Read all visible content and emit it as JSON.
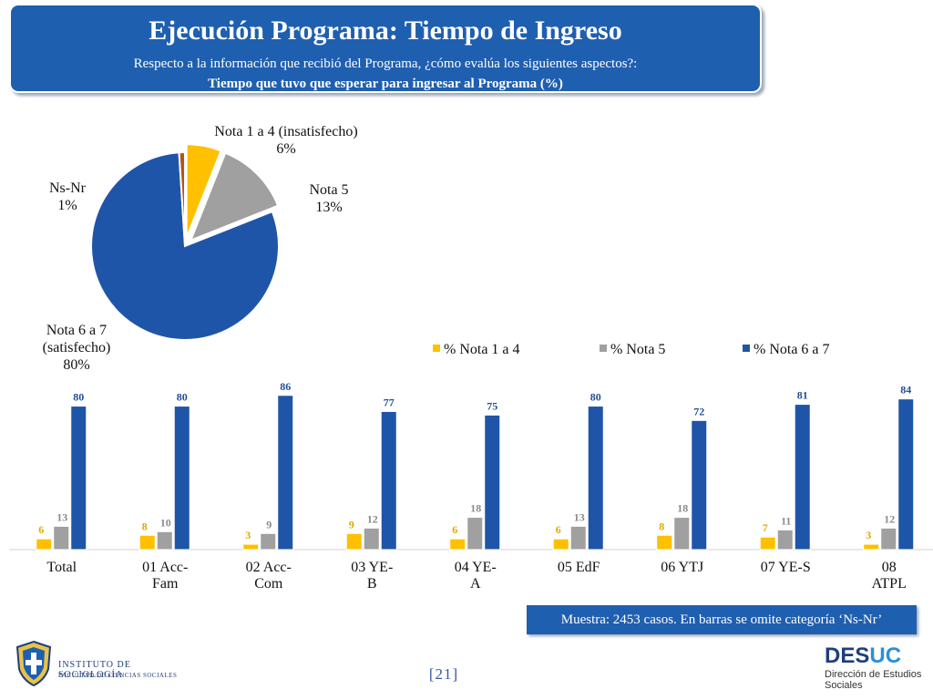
{
  "header": {
    "title": "Ejecución Programa: Tiempo de Ingreso",
    "subtitle": "Respecto a la información que recibió del Programa, ¿cómo evalúa los siguientes aspectos?:",
    "subtitle2": "Tiempo que tuvo que esperar para ingresar al Programa (%)"
  },
  "colors": {
    "accent": "#1f5fb0",
    "nota_1_4": "#ffc000",
    "nota_5": "#a0a0a0",
    "nota_6_7": "#1f55a8",
    "ns_nr": "#b5531c"
  },
  "chart_data": [
    {
      "type": "pie",
      "slices": [
        {
          "label_line1": "Nota 1 a 4 (insatisfecho)",
          "label_line2": "",
          "value": 6,
          "value_text": "6%"
        },
        {
          "label_line1": "Nota 5",
          "label_line2": "",
          "value": 13,
          "value_text": "13%"
        },
        {
          "label_line1": "Nota 6 a 7",
          "label_line2": "(satisfecho)",
          "value": 80,
          "value_text": "80%"
        },
        {
          "label_line1": "Ns-Nr",
          "label_line2": "",
          "value": 1,
          "value_text": "1%"
        }
      ]
    },
    {
      "type": "bar",
      "categories": [
        {
          "line1": "Total",
          "line2": ""
        },
        {
          "line1": "01 Acc-",
          "line2": "Fam"
        },
        {
          "line1": "02 Acc-",
          "line2": "Com"
        },
        {
          "line1": "03 YE-",
          "line2": "B"
        },
        {
          "line1": "04 YE-",
          "line2": "A"
        },
        {
          "line1": "05 EdF",
          "line2": ""
        },
        {
          "line1": "06 YTJ",
          "line2": ""
        },
        {
          "line1": "07 YE-S",
          "line2": ""
        },
        {
          "line1": "08",
          "line2": "ATPL"
        }
      ],
      "series": [
        {
          "name": "% Nota 1 a 4",
          "values": [
            6,
            8,
            3,
            9,
            6,
            6,
            8,
            7,
            3
          ]
        },
        {
          "name": "% Nota 5",
          "values": [
            13,
            10,
            9,
            12,
            18,
            13,
            18,
            11,
            12
          ]
        },
        {
          "name": "% Nota 6 a 7",
          "values": [
            80,
            80,
            86,
            77,
            75,
            80,
            72,
            81,
            84
          ]
        }
      ],
      "ylim": [
        0,
        100
      ],
      "legend_position": "top-right",
      "grid": false
    }
  ],
  "footer": {
    "note": "Muestra: 2453 casos. En barras se omite categoría ‘Ns-Nr’",
    "page": "[21]"
  },
  "logos": {
    "left_line1": "INSTITUTO DE SOCIOLOGÍA",
    "left_line2": "FACULTAD DE CIENCIAS SOCIALES",
    "right_brand_a": "DES",
    "right_brand_b": "UC",
    "right_line1": "Dirección de Estudios",
    "right_line2": "Sociales"
  }
}
